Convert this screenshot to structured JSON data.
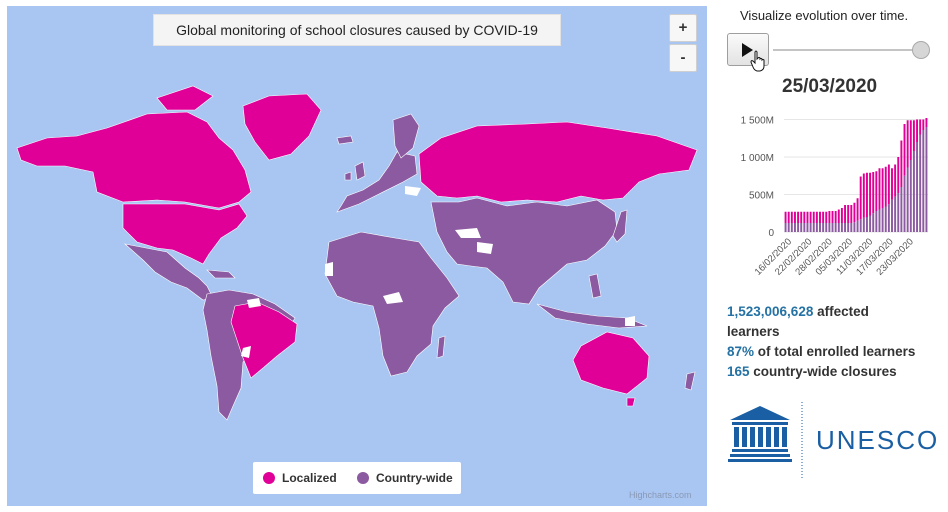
{
  "map": {
    "title": "Global monitoring of school closures caused by COVID-19",
    "zoom_in_label": "+",
    "zoom_out_label": "-",
    "ocean_color": "#a9c6f2",
    "legend": [
      {
        "label": "Localized",
        "color": "#e10097"
      },
      {
        "label": "Country-wide",
        "color": "#8c5aa0"
      }
    ],
    "no_data_color": "#ffffff",
    "credits": "Highcharts.com"
  },
  "controls": {
    "caption": "Visualize evolution over time.",
    "current_date": "25/03/2020",
    "slider_position": 1.0
  },
  "chart_data": {
    "type": "bar",
    "y_ticks": [
      "1 500M",
      "1 000M",
      "500M",
      "0"
    ],
    "x_ticks": [
      "16/02/2020",
      "22/02/2020",
      "28/02/2020",
      "05/03/2020",
      "11/03/2020",
      "17/03/2020",
      "23/03/2020"
    ],
    "ylim": [
      0,
      1600000000
    ],
    "series": [
      {
        "color": "#8c5aa0",
        "values": [
          120000000.0,
          120000000.0,
          120000000.0,
          120000000.0,
          120000000.0,
          120000000.0,
          120000000.0,
          120000000.0,
          120000000.0,
          120000000.0,
          120000000.0,
          120000000.0,
          120000000.0,
          120000000.0,
          120000000.0,
          120000000.0,
          120000000.0,
          120000000.0,
          120000000.0,
          120000000.0,
          120000000.0,
          120000000.0,
          130000000.0,
          150000000.0,
          170000000.0,
          190000000.0,
          200000000.0,
          220000000.0,
          250000000.0,
          280000000.0,
          300000000.0,
          320000000.0,
          340000000.0,
          370000000.0,
          430000000.0,
          470000000.0,
          520000000.0,
          600000000.0,
          750000000.0,
          860000000.0,
          960000000.0,
          1080000000.0,
          1200000000.0,
          1300000000.0,
          1360000000.0,
          1400000000.0
        ]
      },
      {
        "color": "#e10097",
        "values": [
          150000000.0,
          150000000.0,
          150000000.0,
          150000000.0,
          150000000.0,
          150000000.0,
          150000000.0,
          150000000.0,
          150000000.0,
          150000000.0,
          150000000.0,
          150000000.0,
          150000000.0,
          150000000.0,
          160000000.0,
          160000000.0,
          160000000.0,
          180000000.0,
          200000000.0,
          240000000.0,
          240000000.0,
          240000000.0,
          260000000.0,
          300000000.0,
          570000000.0,
          590000000.0,
          590000000.0,
          570000000.0,
          550000000.0,
          530000000.0,
          550000000.0,
          530000000.0,
          530000000.0,
          530000000.0,
          420000000.0,
          430000000.0,
          480000000.0,
          620000000.0,
          690000000.0,
          630000000.0,
          530000000.0,
          410000000.0,
          300000000.0,
          200000000.0,
          140000000.0,
          120000000.0
        ]
      }
    ]
  },
  "stats": {
    "affected_value": "1,523,006,628",
    "affected_label": "affected",
    "affected_label2": "learners",
    "percent_value": "87%",
    "percent_label": "of total enrolled learners",
    "closures_value": "165",
    "closures_label": "country-wide closures"
  },
  "logo": {
    "text": "UNESCO",
    "color": "#1a5fa3"
  }
}
